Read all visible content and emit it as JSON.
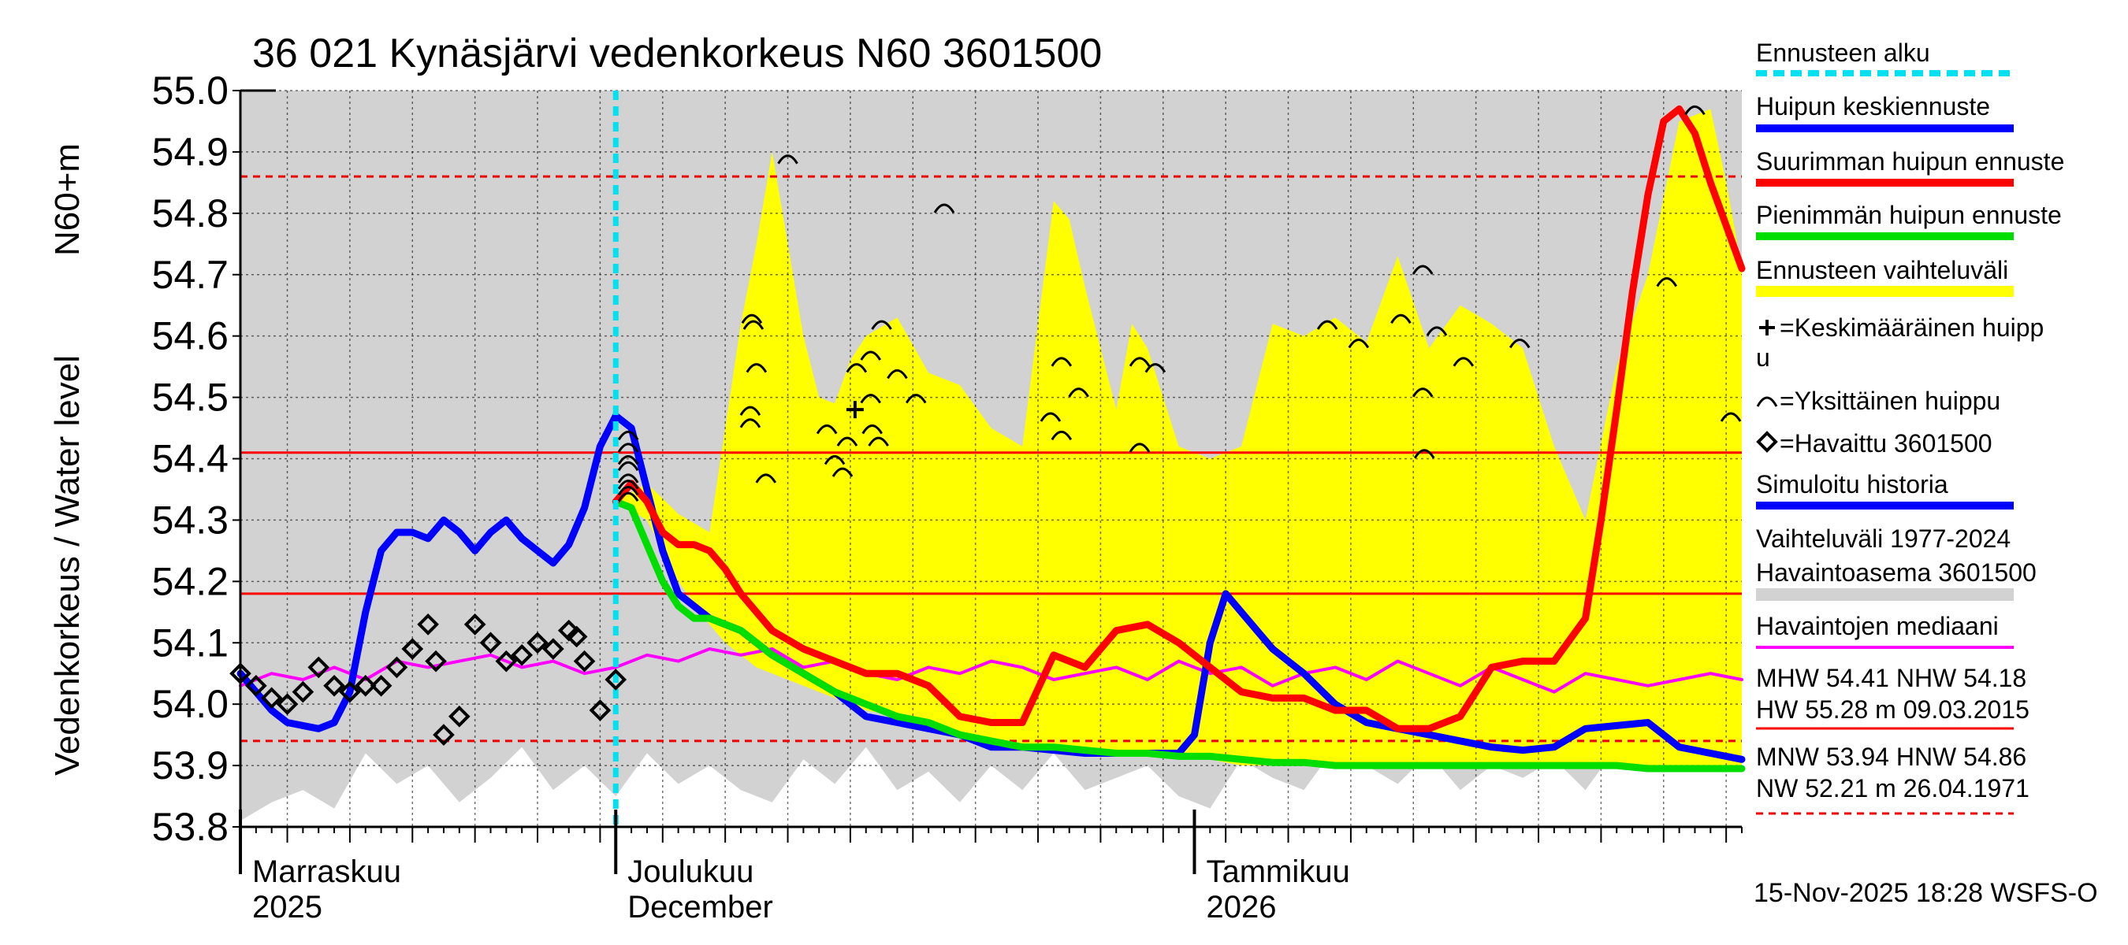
{
  "chart_data": {
    "type": "line",
    "title": "36 021 Kynäsjärvi vedenkorkeus N60 3601500",
    "ylabel_left": "Vedenkorkeus / Water level",
    "ylabel_unit": "N60+m",
    "ylim": [
      53.8,
      55.0
    ],
    "y_ticks": [
      "53.8",
      "53.9",
      "54.0",
      "54.1",
      "54.2",
      "54.3",
      "54.4",
      "54.5",
      "54.6",
      "54.7",
      "54.8",
      "54.9",
      "55.0"
    ],
    "x_range_days": [
      0,
      96
    ],
    "x_labels": [
      {
        "day": 13.5,
        "line1": "Marraskuu",
        "line2": "2025"
      },
      {
        "day": 40,
        "line1": "Joulukuu",
        "line2": "December"
      },
      {
        "day": 62,
        "line1": "Tammikuu",
        "line2": "2026"
      }
    ],
    "month_boundaries": [
      0,
      24,
      61
    ],
    "forecast_start_day": 24,
    "reference_lines": {
      "MHW": 54.41,
      "NHW": 54.18,
      "MNW": 53.94,
      "HNW": 54.86
    },
    "history_band": {
      "name": "Vaihteluväli 1977-2024 Havaintoasema 3601500",
      "x": [
        0,
        2,
        4,
        6,
        8,
        10,
        12,
        14,
        16,
        18,
        20,
        22,
        24,
        26,
        28,
        30,
        32,
        34,
        36,
        38,
        40,
        42,
        44,
        46,
        48,
        50,
        52,
        54,
        56,
        58,
        60,
        62,
        64,
        66,
        68,
        70,
        72,
        74,
        76,
        78,
        80,
        82,
        84,
        86,
        88,
        90,
        92,
        94,
        96
      ],
      "upper": [
        55.0,
        55.0,
        55.0,
        55.0,
        55.0,
        55.0,
        55.0,
        55.0,
        55.0,
        55.0,
        55.0,
        55.0,
        55.0,
        55.0,
        55.0,
        55.0,
        55.0,
        55.0,
        55.0,
        55.0,
        55.0,
        55.0,
        55.0,
        55.0,
        55.0,
        55.0,
        55.0,
        55.0,
        55.0,
        55.0,
        55.0,
        55.0,
        55.0,
        55.0,
        55.0,
        55.0,
        55.0,
        55.0,
        55.0,
        55.0,
        55.0,
        55.0,
        55.0,
        55.0,
        55.0,
        55.0,
        55.0,
        55.0,
        55.0
      ],
      "lower": [
        53.81,
        53.84,
        53.86,
        53.83,
        53.92,
        53.87,
        53.9,
        53.84,
        53.88,
        53.93,
        53.86,
        53.9,
        53.85,
        53.92,
        53.87,
        53.9,
        53.86,
        53.84,
        53.91,
        53.87,
        53.93,
        53.86,
        53.89,
        53.84,
        53.9,
        53.86,
        53.92,
        53.86,
        53.88,
        53.9,
        53.85,
        53.83,
        53.91,
        53.88,
        53.86,
        53.93,
        53.9,
        53.87,
        53.92,
        53.86,
        53.9,
        53.88,
        53.91,
        53.86,
        53.93,
        53.89,
        53.92,
        53.97,
        53.95
      ]
    },
    "forecast_band": {
      "name": "Ennusteen vaihteluväli",
      "x": [
        24,
        26,
        28,
        30,
        31,
        32,
        33,
        34,
        35,
        36,
        37,
        38,
        39,
        40,
        42,
        44,
        46,
        48,
        50,
        52,
        53,
        54,
        56,
        57,
        58,
        60,
        62,
        64,
        66,
        68,
        70,
        72,
        74,
        76,
        78,
        80,
        82,
        84,
        86,
        88,
        90,
        92,
        94,
        95,
        96
      ],
      "upper": [
        54.33,
        54.36,
        54.31,
        54.28,
        54.45,
        54.62,
        54.75,
        54.9,
        54.75,
        54.6,
        54.5,
        54.49,
        54.56,
        54.6,
        54.63,
        54.54,
        54.52,
        54.45,
        54.42,
        54.82,
        54.79,
        54.68,
        54.48,
        54.62,
        54.58,
        54.42,
        54.4,
        54.42,
        54.62,
        54.6,
        54.63,
        54.59,
        54.73,
        54.58,
        54.65,
        54.62,
        54.58,
        54.42,
        54.3,
        54.55,
        54.7,
        54.95,
        54.97,
        54.85,
        54.71
      ],
      "lower": [
        54.33,
        54.3,
        54.2,
        54.13,
        54.1,
        54.08,
        54.06,
        54.05,
        54.04,
        54.03,
        54.02,
        54.01,
        54.0,
        53.99,
        53.98,
        53.97,
        53.95,
        53.93,
        53.93,
        53.93,
        53.92,
        53.92,
        53.92,
        53.92,
        53.92,
        53.91,
        53.91,
        53.9,
        53.9,
        53.9,
        53.9,
        53.9,
        53.9,
        53.9,
        53.9,
        53.9,
        53.9,
        53.9,
        53.9,
        53.9,
        53.9,
        53.9,
        53.89,
        53.89,
        53.89
      ]
    },
    "series": [
      {
        "name": "Havaintojen mediaani",
        "color": "#ff00ff",
        "x": [
          0,
          2,
          4,
          6,
          8,
          10,
          12,
          14,
          16,
          18,
          20,
          22,
          24,
          26,
          28,
          30,
          32,
          34,
          36,
          38,
          40,
          42,
          44,
          46,
          48,
          50,
          52,
          54,
          56,
          58,
          60,
          62,
          64,
          66,
          68,
          70,
          72,
          74,
          76,
          78,
          80,
          82,
          84,
          86,
          88,
          90,
          92,
          94,
          96
        ],
        "y": [
          54.03,
          54.05,
          54.04,
          54.06,
          54.04,
          54.07,
          54.06,
          54.07,
          54.08,
          54.06,
          54.07,
          54.05,
          54.06,
          54.08,
          54.07,
          54.09,
          54.08,
          54.09,
          54.06,
          54.07,
          54.05,
          54.04,
          54.06,
          54.05,
          54.07,
          54.06,
          54.04,
          54.05,
          54.06,
          54.04,
          54.07,
          54.05,
          54.06,
          54.03,
          54.05,
          54.06,
          54.04,
          54.07,
          54.05,
          54.03,
          54.06,
          54.04,
          54.02,
          54.05,
          54.04,
          54.03,
          54.04,
          54.05,
          54.04
        ]
      },
      {
        "name": "Simuloitu historia / Huipun keskiennuste",
        "color": "#0000ff",
        "x": [
          0,
          1,
          2,
          3,
          4,
          5,
          6,
          7,
          8,
          9,
          10,
          11,
          12,
          13,
          14,
          15,
          16,
          17,
          18,
          19,
          20,
          21,
          22,
          23,
          24,
          25,
          26,
          27,
          28,
          30,
          32,
          34,
          36,
          38,
          40,
          42,
          44,
          46,
          48,
          50,
          52,
          54,
          56,
          58,
          60,
          61,
          62,
          63,
          64,
          65,
          66,
          68,
          70,
          72,
          74,
          76,
          78,
          80,
          82,
          84,
          86,
          88,
          90,
          92,
          94,
          96
        ],
        "y": [
          54.05,
          54.02,
          53.99,
          53.97,
          53.965,
          53.96,
          53.97,
          54.02,
          54.15,
          54.25,
          54.28,
          54.28,
          54.27,
          54.3,
          54.28,
          54.25,
          54.28,
          54.3,
          54.27,
          54.25,
          54.23,
          54.26,
          54.32,
          54.42,
          54.47,
          54.45,
          54.35,
          54.25,
          54.18,
          54.14,
          54.12,
          54.08,
          54.05,
          54.02,
          53.98,
          53.97,
          53.96,
          53.95,
          53.93,
          53.93,
          53.925,
          53.92,
          53.92,
          53.92,
          53.92,
          53.95,
          54.1,
          54.18,
          54.15,
          54.12,
          54.09,
          54.05,
          54.0,
          53.97,
          53.96,
          53.95,
          53.94,
          53.93,
          53.925,
          53.93,
          53.96,
          53.965,
          53.97,
          53.93,
          53.92,
          53.91
        ]
      },
      {
        "name": "Pienimmän huipun ennuste",
        "color": "#00dd00",
        "x": [
          24,
          25,
          26,
          27,
          28,
          29,
          30,
          32,
          34,
          36,
          38,
          40,
          42,
          44,
          46,
          48,
          50,
          52,
          54,
          56,
          58,
          60,
          62,
          64,
          66,
          68,
          70,
          72,
          74,
          76,
          78,
          80,
          82,
          84,
          86,
          88,
          90,
          92,
          94,
          96
        ],
        "y": [
          54.33,
          54.32,
          54.26,
          54.2,
          54.16,
          54.14,
          54.14,
          54.12,
          54.08,
          54.05,
          54.02,
          54.0,
          53.98,
          53.97,
          53.95,
          53.94,
          53.93,
          53.93,
          53.925,
          53.92,
          53.92,
          53.915,
          53.915,
          53.91,
          53.905,
          53.905,
          53.9,
          53.9,
          53.9,
          53.9,
          53.9,
          53.9,
          53.9,
          53.9,
          53.9,
          53.9,
          53.895,
          53.895,
          53.895,
          53.895
        ]
      },
      {
        "name": "Suurimman huipun ennuste",
        "color": "#ff0000",
        "x": [
          24,
          25,
          26,
          27,
          28,
          29,
          30,
          31,
          32,
          34,
          36,
          38,
          40,
          42,
          44,
          46,
          48,
          50,
          52,
          54,
          56,
          58,
          60,
          62,
          64,
          66,
          68,
          70,
          72,
          74,
          76,
          78,
          80,
          82,
          84,
          86,
          87,
          88,
          89,
          90,
          91,
          92,
          93,
          94,
          95,
          96
        ],
        "y": [
          54.33,
          54.36,
          54.33,
          54.28,
          54.26,
          54.26,
          54.25,
          54.22,
          54.18,
          54.12,
          54.09,
          54.07,
          54.05,
          54.05,
          54.03,
          53.98,
          53.97,
          53.97,
          54.08,
          54.06,
          54.12,
          54.13,
          54.1,
          54.06,
          54.02,
          54.01,
          54.01,
          53.99,
          53.99,
          53.96,
          53.96,
          53.98,
          54.06,
          54.07,
          54.07,
          54.14,
          54.3,
          54.48,
          54.67,
          54.83,
          54.95,
          54.97,
          54.93,
          54.85,
          54.78,
          54.71
        ]
      }
    ],
    "observed": {
      "name": "Havaittu 3601500",
      "x": [
        0,
        1,
        2,
        3,
        4,
        5,
        6,
        7,
        8,
        9,
        10,
        11,
        12,
        12.5,
        13,
        14,
        15,
        16,
        17,
        18,
        19,
        20,
        21,
        21.5,
        22,
        23,
        24
      ],
      "y": [
        54.05,
        54.03,
        54.01,
        54.0,
        54.02,
        54.06,
        54.03,
        54.02,
        54.03,
        54.03,
        54.06,
        54.09,
        54.13,
        54.07,
        53.95,
        53.98,
        54.13,
        54.1,
        54.07,
        54.08,
        54.1,
        54.09,
        54.12,
        54.11,
        54.07,
        53.99,
        54.04
      ]
    },
    "peak_markers_x": [
      24.8,
      24.8,
      24.8,
      24.8,
      24.8,
      24.8,
      24.8,
      24.8,
      32.7,
      32.8,
      33.0,
      32.6,
      32.6,
      33.6,
      35.0,
      37.5,
      38.0,
      38.5,
      38.8,
      39.4,
      40.3,
      40.3,
      40.4,
      40.8,
      41.0,
      42.0,
      43.2,
      45.0,
      51.8,
      52.5,
      52.5,
      53.6,
      57.5,
      57.5,
      58.5,
      69.5,
      71.5,
      74.2,
      75.6,
      75.6,
      75.7,
      76.5,
      78.2,
      81.8,
      91.2,
      93.0,
      95.3
    ],
    "peak_markers_y": [
      54.44,
      54.42,
      54.4,
      54.39,
      54.37,
      54.36,
      54.35,
      54.34,
      54.63,
      54.62,
      54.55,
      54.48,
      54.46,
      54.37,
      54.89,
      54.45,
      54.4,
      54.38,
      54.43,
      54.55,
      54.5,
      54.57,
      54.45,
      54.43,
      54.62,
      54.54,
      54.5,
      54.81,
      54.47,
      54.44,
      54.56,
      54.51,
      54.56,
      54.42,
      54.55,
      54.62,
      54.59,
      54.63,
      54.71,
      54.51,
      54.41,
      54.61,
      54.56,
      54.59,
      54.69,
      54.97,
      54.47
    ],
    "mean_peak": {
      "x": 39.3,
      "y": 54.48
    },
    "legend": [
      "Ennusteen alku",
      "Huipun keskiennuste",
      "Suurimman huipun ennuste",
      "Pienimmän huipun ennuste",
      "Ennusteen vaihteluväli",
      "=Keskimääräinen huipp",
      "u",
      "=Yksittäinen huippu",
      "=Havaittu 3601500",
      "Simuloitu historia",
      "Vaihteluväli 1977-2024",
      " Havaintoasema 3601500",
      "Havaintojen mediaani"
    ],
    "stats": [
      "MHW  54.41  NHW  54.18",
      "HW  55.28 m 09.03.2015",
      "MNW  53.94  HNW  54.86",
      "NW  52.21 m 26.04.1971"
    ],
    "footer": "15-Nov-2025 18:28 WSFS-O"
  },
  "colors": {
    "band_history": "#d2d2d2",
    "band_forecast": "#ffff00",
    "forecast_start": "#00e0f0",
    "reference_solid": "#ff0000",
    "reference_dashed": "#ee0000"
  }
}
